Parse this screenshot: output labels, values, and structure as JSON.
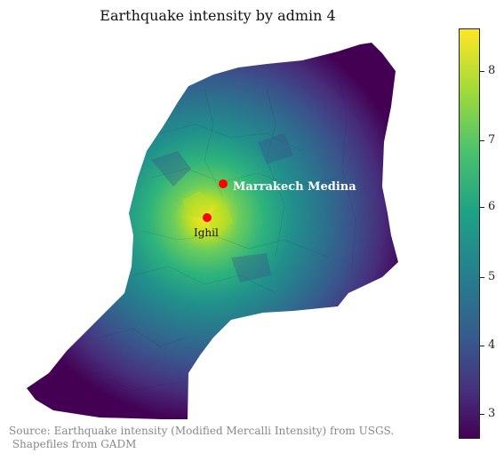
{
  "title": "Earthquake intensity by admin 4",
  "colorbar": {
    "ticks": [
      "3",
      "4",
      "5",
      "6",
      "7",
      "8"
    ],
    "min": 2.6,
    "max": 8.6,
    "colormap": "viridis"
  },
  "cities": [
    {
      "name": "Marrakech Medina",
      "marker_color": "#ff0000"
    },
    {
      "name": "Ighil",
      "marker_color": "#ff0000"
    }
  ],
  "source": "Source: Earthquake intensity (Modified Mercalli Intensity) from USGS.\n Shapefiles from GADM"
}
